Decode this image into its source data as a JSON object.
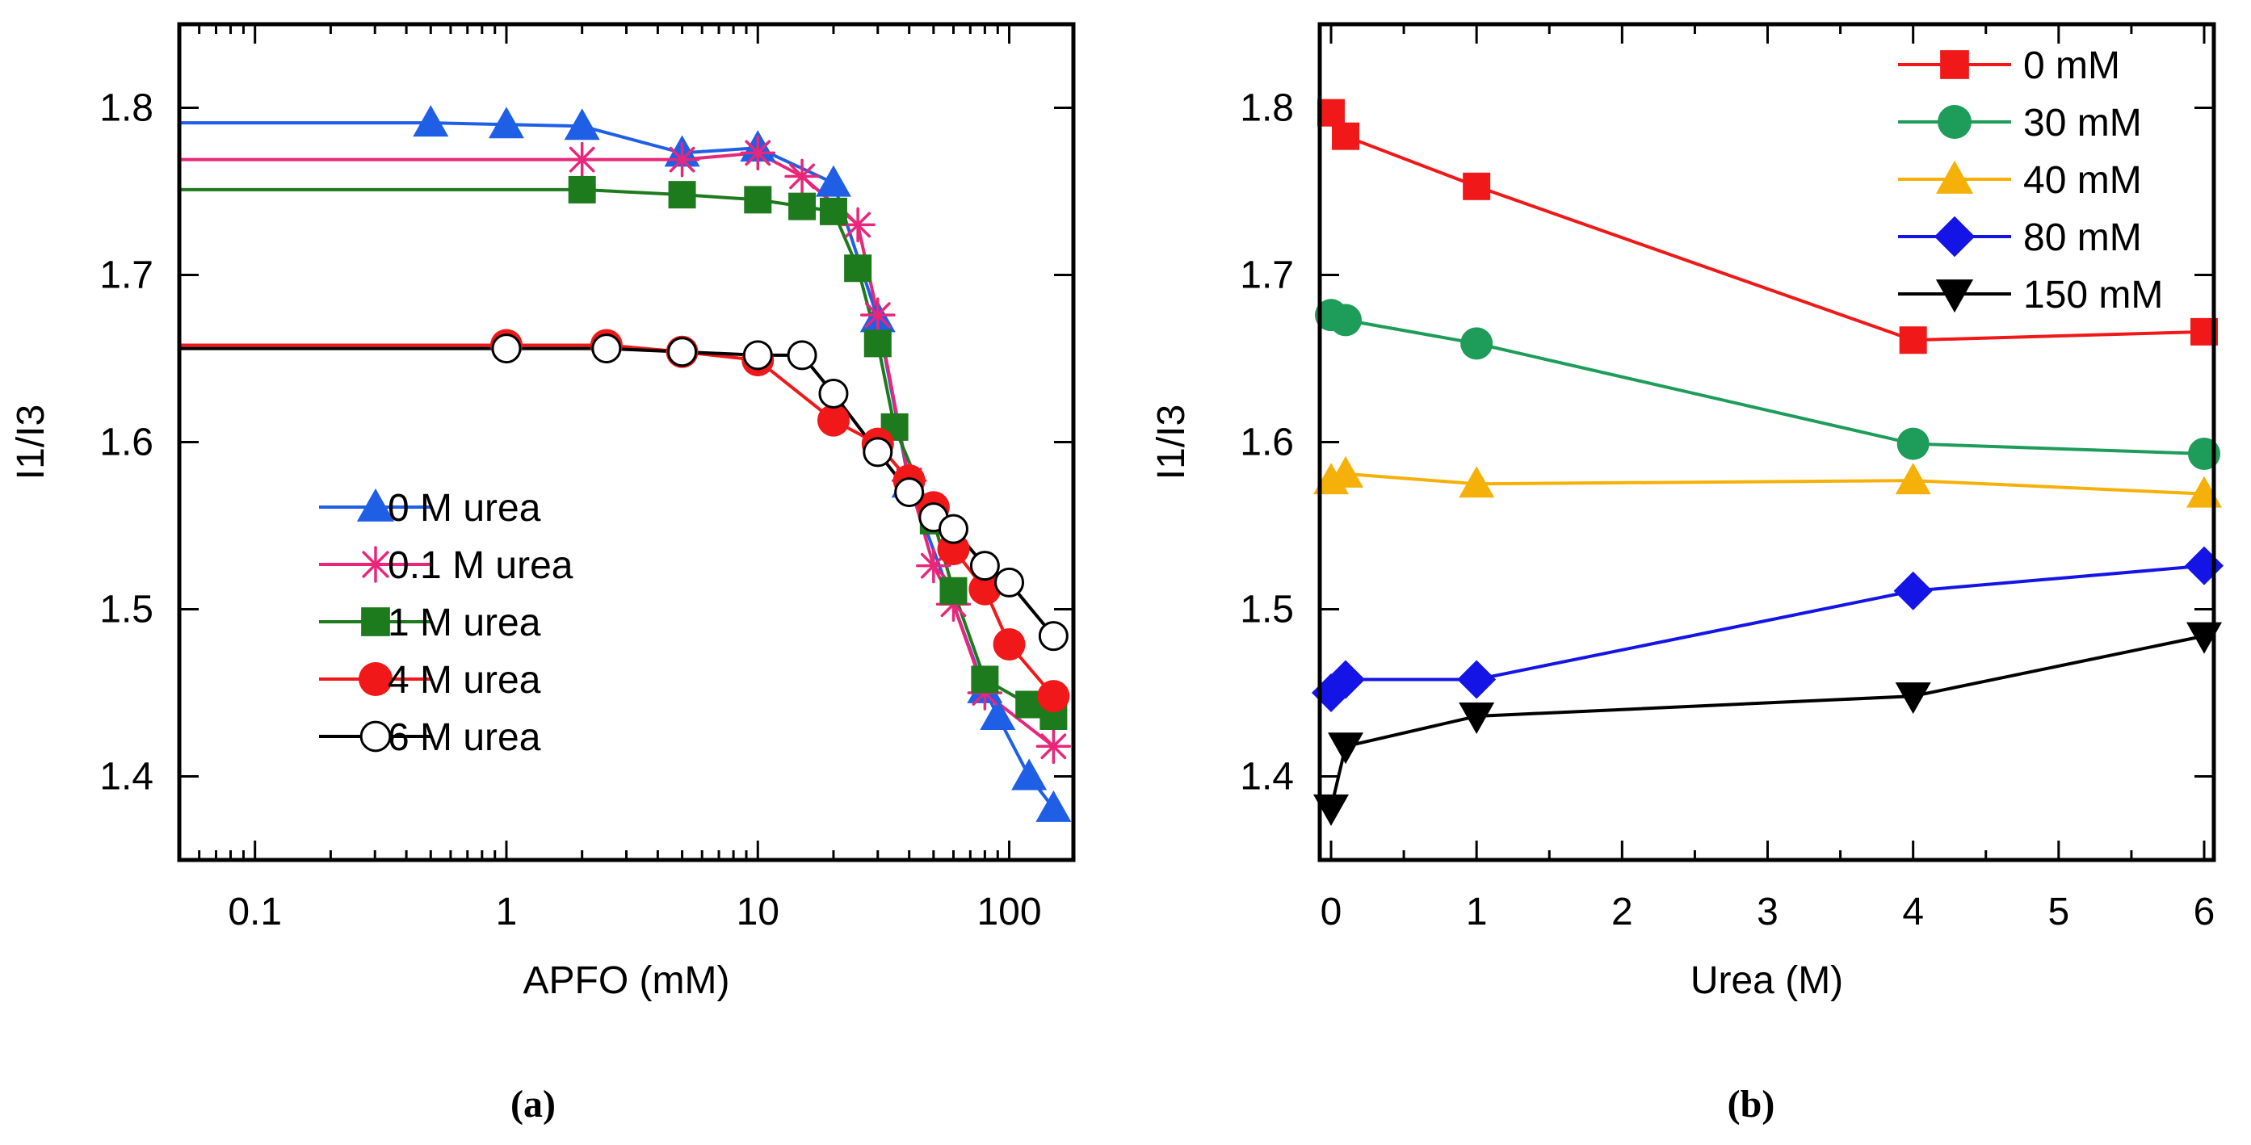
{
  "chart_data": [
    {
      "type": "line",
      "panel_label": "a",
      "xscale": "log",
      "xlabel": "APFO (mM)",
      "ylabel": "I1/I3",
      "xlim": [
        0.05,
        180
      ],
      "ylim": [
        1.35,
        1.85
      ],
      "xticks": [
        0.1,
        1,
        10,
        100
      ],
      "xtick_labels": [
        "0.1",
        "1",
        "10",
        "100"
      ],
      "yticks": [
        1.4,
        1.5,
        1.6,
        1.7,
        1.8
      ],
      "ytick_labels": [
        "1.4",
        "1.5",
        "1.6",
        "1.7",
        "1.8"
      ],
      "legend_position": "bottom-left",
      "series": [
        {
          "name": "0 M urea",
          "color": "#1f5fe6",
          "marker": "triangle-up",
          "filled": true,
          "lead_from_axis": true,
          "x": [
            0.5,
            1,
            2,
            5,
            10,
            20,
            30,
            40,
            80,
            90,
            120,
            150
          ],
          "y": [
            1.791,
            1.79,
            1.789,
            1.773,
            1.776,
            1.755,
            1.674,
            1.575,
            1.452,
            1.436,
            1.4,
            1.381
          ]
        },
        {
          "name": "0.1 M urea",
          "color": "#e8267a",
          "marker": "asterisk",
          "filled": false,
          "lead_from_axis": true,
          "x": [
            2,
            5,
            10,
            15,
            25,
            30,
            40,
            50,
            60,
            80,
            150
          ],
          "y": [
            1.769,
            1.769,
            1.773,
            1.759,
            1.73,
            1.676,
            1.577,
            1.526,
            1.503,
            1.45,
            1.418
          ]
        },
        {
          "name": "1 M urea",
          "color": "#1d7a1d",
          "marker": "square",
          "filled": true,
          "lead_from_axis": true,
          "x": [
            2,
            5,
            10,
            15,
            20,
            25,
            30,
            35,
            50,
            60,
            80,
            120,
            150
          ],
          "y": [
            1.751,
            1.748,
            1.745,
            1.741,
            1.738,
            1.704,
            1.659,
            1.609,
            1.553,
            1.511,
            1.458,
            1.443,
            1.436
          ]
        },
        {
          "name": "4 M urea",
          "color": "#f01818",
          "marker": "circle",
          "filled": true,
          "lead_from_axis": true,
          "x": [
            1,
            2.5,
            5,
            10,
            20,
            30,
            40,
            50,
            60,
            80,
            100,
            150
          ],
          "y": [
            1.658,
            1.658,
            1.654,
            1.649,
            1.613,
            1.599,
            1.577,
            1.561,
            1.536,
            1.512,
            1.479,
            1.448
          ]
        },
        {
          "name": "6 M urea",
          "color": "#000000",
          "marker": "circle-open",
          "filled": false,
          "lead_from_axis": true,
          "x": [
            1,
            2.5,
            5,
            10,
            15,
            20,
            30,
            40,
            50,
            60,
            80,
            100,
            150
          ],
          "y": [
            1.656,
            1.656,
            1.654,
            1.652,
            1.652,
            1.629,
            1.594,
            1.57,
            1.555,
            1.548,
            1.526,
            1.516,
            1.484
          ]
        }
      ]
    },
    {
      "type": "line",
      "panel_label": "b",
      "xscale": "linear",
      "xlabel": "Urea (M)",
      "ylabel": "I1/I3",
      "xlim": [
        0,
        6
      ],
      "ylim": [
        1.35,
        1.85
      ],
      "xticks": [
        0,
        1,
        2,
        3,
        4,
        5,
        6
      ],
      "xtick_labels": [
        "0",
        "1",
        "2",
        "3",
        "4",
        "5",
        "6"
      ],
      "yticks": [
        1.4,
        1.5,
        1.6,
        1.7,
        1.8
      ],
      "ytick_labels": [
        "1.4",
        "1.5",
        "1.6",
        "1.7",
        "1.8"
      ],
      "legend_position": "top-right",
      "series": [
        {
          "name": "0 mM",
          "color": "#f01818",
          "marker": "square",
          "filled": true,
          "x": [
            0,
            0.1,
            1,
            4,
            6
          ],
          "y": [
            1.797,
            1.783,
            1.753,
            1.661,
            1.666
          ]
        },
        {
          "name": "30 mM",
          "color": "#1e9c5a",
          "marker": "circle",
          "filled": true,
          "x": [
            0,
            0.1,
            1,
            4,
            6
          ],
          "y": [
            1.676,
            1.673,
            1.659,
            1.599,
            1.593
          ]
        },
        {
          "name": "40 mM",
          "color": "#f5b10a",
          "marker": "triangle-up",
          "filled": true,
          "x": [
            0,
            0.1,
            1,
            4,
            6
          ],
          "y": [
            1.577,
            1.581,
            1.575,
            1.577,
            1.569
          ]
        },
        {
          "name": "80 mM",
          "color": "#1414e6",
          "marker": "diamond",
          "filled": true,
          "x": [
            0,
            0.1,
            1,
            4,
            6
          ],
          "y": [
            1.45,
            1.458,
            1.458,
            1.511,
            1.526
          ]
        },
        {
          "name": "150 mM",
          "color": "#000000",
          "marker": "triangle-down",
          "filled": true,
          "x": [
            0,
            0.1,
            1,
            4,
            6
          ],
          "y": [
            1.381,
            1.418,
            1.436,
            1.448,
            1.484
          ]
        }
      ]
    }
  ],
  "captions": [
    "(a)",
    "(b)"
  ]
}
